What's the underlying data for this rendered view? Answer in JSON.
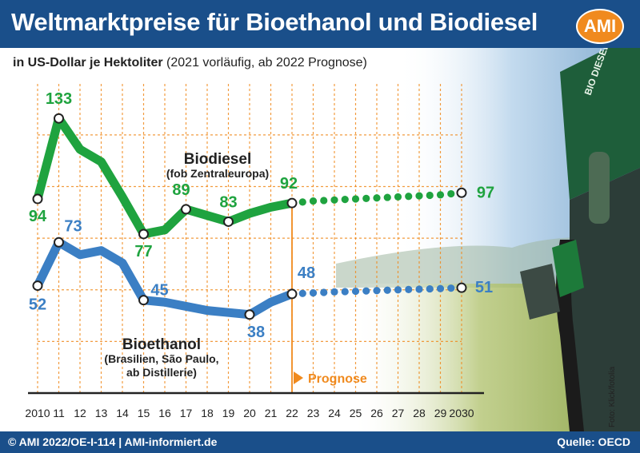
{
  "header": {
    "title": "Weltmarktpreise für Bioethanol und Biodiesel",
    "logo": "AMI",
    "subtitle_bold": "in US-Dollar je Hektoliter",
    "subtitle_normal": "(2021 vorläufig, ab 2022 Prognose)"
  },
  "footer": {
    "left": "© AMI 2022/OE-I-114 | AMI-informiert.de",
    "right": "Quelle: OECD"
  },
  "photo_credit": "Foto: Klick/fotolia",
  "colors": {
    "biodiesel": "#1fa33f",
    "bioethanol": "#3b7fc4",
    "forecast": "#f08a1e",
    "header": "#1a4f8a"
  },
  "chart_data": {
    "type": "line",
    "title": "Weltmarktpreise für Bioethanol und Biodiesel",
    "x": [
      "2010",
      "11",
      "12",
      "13",
      "14",
      "15",
      "16",
      "17",
      "18",
      "19",
      "20",
      "21",
      "22",
      "23",
      "24",
      "25",
      "26",
      "27",
      "28",
      "29",
      "2030"
    ],
    "ylim": [
      0,
      150
    ],
    "grid": true,
    "forecast_start": "22",
    "forecast_label": "Prognose",
    "series": [
      {
        "name": "Biodiesel",
        "note": "(fob Zentraleuropa)",
        "values": [
          94,
          133,
          118,
          112,
          95,
          77,
          79,
          89,
          86,
          83,
          87,
          90,
          92,
          93,
          93.5,
          94,
          94.5,
          95,
          95.5,
          96,
          97
        ],
        "labels": [
          {
            "i": 0,
            "text": "94"
          },
          {
            "i": 1,
            "text": "133"
          },
          {
            "i": 5,
            "text": "77"
          },
          {
            "i": 7,
            "text": "89"
          },
          {
            "i": 9,
            "text": "83"
          },
          {
            "i": 12,
            "text": "92"
          },
          {
            "i": 20,
            "text": "97"
          }
        ]
      },
      {
        "name": "Bioethanol",
        "note": "(Brasilien, São Paulo, ab Distillerie)",
        "values": [
          52,
          73,
          67,
          69,
          63,
          45,
          44,
          42,
          40,
          39,
          38,
          44,
          48,
          48.5,
          49,
          49.3,
          49.6,
          50,
          50.3,
          50.6,
          51
        ],
        "labels": [
          {
            "i": 0,
            "text": "52"
          },
          {
            "i": 1,
            "text": "73"
          },
          {
            "i": 5,
            "text": "45"
          },
          {
            "i": 10,
            "text": "38"
          },
          {
            "i": 12,
            "text": "48"
          },
          {
            "i": 20,
            "text": "51"
          }
        ]
      }
    ]
  }
}
